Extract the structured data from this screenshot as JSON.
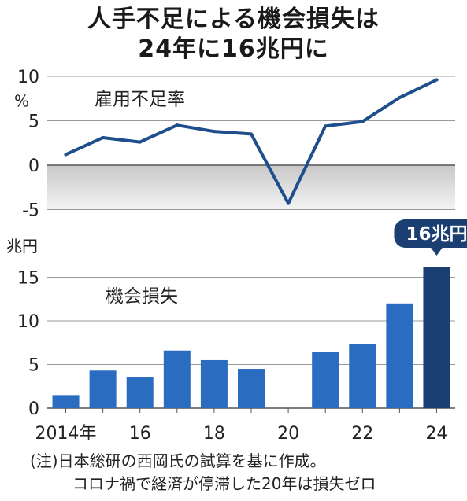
{
  "title_line1": "人手不足による機会損失は",
  "title_line2": "24年に16兆円に",
  "chart_data": [
    {
      "type": "line",
      "title": "雇用不足率",
      "unit": "%",
      "x": [
        2014,
        2015,
        2016,
        2017,
        2018,
        2019,
        2020,
        2021,
        2022,
        2023,
        2024
      ],
      "values": [
        1.2,
        3.1,
        2.6,
        4.5,
        3.8,
        3.5,
        -4.3,
        4.4,
        4.9,
        7.6,
        9.6
      ],
      "yticks": [
        10,
        5,
        0,
        -5
      ],
      "ylim": [
        -5,
        10
      ],
      "color": "#1f4e8c"
    },
    {
      "type": "bar",
      "title": "機会損失",
      "unit": "兆円",
      "x": [
        2014,
        2015,
        2016,
        2017,
        2018,
        2019,
        2020,
        2021,
        2022,
        2023,
        2024
      ],
      "values": [
        1.5,
        4.3,
        3.6,
        6.6,
        5.5,
        4.5,
        0,
        6.4,
        7.3,
        12.0,
        16.2
      ],
      "yticks": [
        15,
        10,
        5,
        0
      ],
      "ylim": [
        0,
        16.8
      ],
      "xticks": [
        "2014年",
        "16",
        "18",
        "20",
        "22",
        "24"
      ],
      "callout": "16兆円",
      "color": "#2a6cc0",
      "highlight_color": "#1b3f72"
    }
  ],
  "note_line1": "(注)日本総研の西岡氏の試算を基に作成。",
  "note_line2": "コロナ禍で経済が停滞した20年は損失ゼロ"
}
